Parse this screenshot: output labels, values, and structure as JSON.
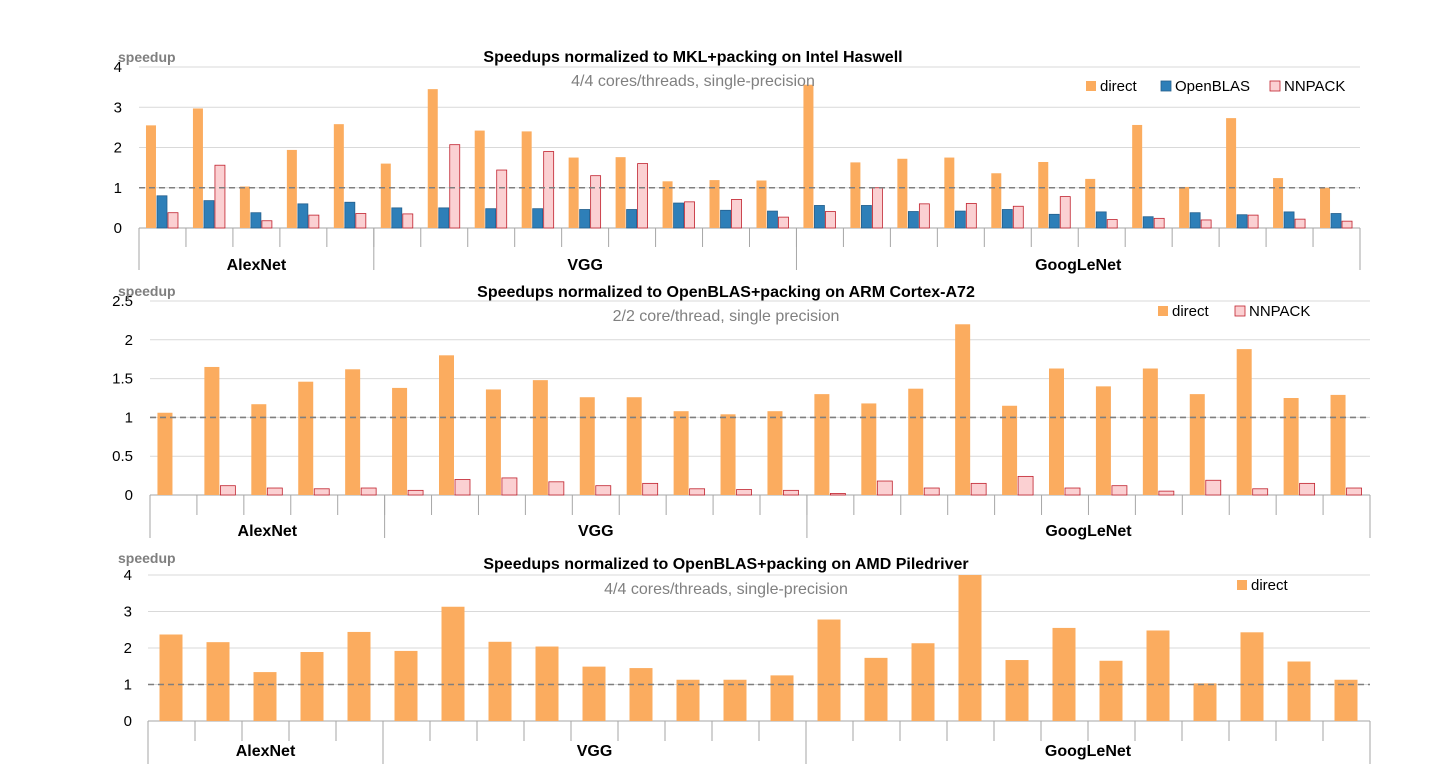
{
  "colors": {
    "direct": "#fbac5f",
    "direct_stroke": "#f79646",
    "openblas": "#2e7fb8",
    "openblas_stroke": "#245f8c",
    "nnpack": "#fbd0d2",
    "nnpack_stroke": "#c0212d",
    "grid": "#d9d9d9",
    "axis": "#a6a6a6",
    "reference_line": "#7f7f7f"
  },
  "chart_data": [
    {
      "type": "bar",
      "title": "Speedups normalized to MKL+packing on Intel Haswell",
      "subtitle": "4/4 cores/threads, single-precision",
      "ylabel": "speedup",
      "ylim": [
        0,
        4
      ],
      "yticks": [
        "0",
        "1",
        "2",
        "3",
        "4"
      ],
      "reference_line": 1,
      "grid": true,
      "legend_position": "top-right",
      "groups": [
        {
          "label": "AlexNet",
          "count": 5
        },
        {
          "label": "VGG",
          "count": 9
        },
        {
          "label": "GoogLeNet",
          "count": 12
        }
      ],
      "series": [
        {
          "name": "direct",
          "color_key": "direct",
          "values": [
            2.55,
            2.97,
            1.03,
            1.94,
            2.58,
            1.6,
            3.45,
            2.42,
            2.4,
            1.75,
            1.76,
            1.16,
            1.19,
            1.18,
            3.56,
            1.63,
            1.72,
            1.75,
            1.36,
            1.64,
            1.22,
            2.56,
            1.02,
            2.73,
            1.24,
            1.0
          ]
        },
        {
          "name": "OpenBLAS",
          "color_key": "openblas",
          "values": [
            0.8,
            0.68,
            0.38,
            0.6,
            0.64,
            0.5,
            0.5,
            0.48,
            0.48,
            0.46,
            0.46,
            0.62,
            0.44,
            0.42,
            0.56,
            0.56,
            0.41,
            0.42,
            0.46,
            0.34,
            0.4,
            0.28,
            0.38,
            0.33,
            0.4,
            0.36
          ]
        },
        {
          "name": "NNPACK",
          "color_key": "nnpack",
          "values": [
            0.38,
            1.56,
            0.18,
            0.32,
            0.36,
            0.35,
            2.07,
            1.44,
            1.9,
            1.3,
            1.6,
            0.65,
            0.71,
            0.27,
            0.41,
            1.0,
            0.6,
            0.61,
            0.54,
            0.78,
            0.21,
            0.24,
            0.2,
            0.32,
            0.22,
            0.17
          ]
        }
      ]
    },
    {
      "type": "bar",
      "title": "Speedups normalized to OpenBLAS+packing on ARM Cortex-A72",
      "subtitle": "2/2 core/thread,  single precision",
      "ylabel": "speedup",
      "ylim": [
        0,
        2.5
      ],
      "yticks": [
        "0",
        "0.5",
        "1",
        "1.5",
        "2",
        "2.5"
      ],
      "reference_line": 1,
      "grid": true,
      "legend_position": "top-right",
      "groups": [
        {
          "label": "AlexNet",
          "count": 5
        },
        {
          "label": "VGG",
          "count": 9
        },
        {
          "label": "GoogLeNet",
          "count": 12
        }
      ],
      "series": [
        {
          "name": "direct",
          "color_key": "direct",
          "values": [
            1.06,
            1.65,
            1.17,
            1.46,
            1.62,
            1.38,
            1.8,
            1.36,
            1.48,
            1.26,
            1.26,
            1.08,
            1.04,
            1.08,
            1.3,
            1.18,
            1.37,
            2.2,
            1.15,
            1.63,
            1.4,
            1.63,
            1.3,
            1.88,
            1.25,
            1.29
          ]
        },
        {
          "name": "NNPACK",
          "color_key": "nnpack",
          "values": [
            0.0,
            0.12,
            0.09,
            0.08,
            0.09,
            0.06,
            0.2,
            0.22,
            0.17,
            0.12,
            0.15,
            0.08,
            0.07,
            0.06,
            0.02,
            0.18,
            0.09,
            0.15,
            0.24,
            0.09,
            0.12,
            0.05,
            0.19,
            0.08,
            0.15,
            0.09
          ]
        }
      ]
    },
    {
      "type": "bar",
      "title": "Speedups normalized to OpenBLAS+packing on AMD Piledriver",
      "subtitle": "4/4 cores/threads, single-precision",
      "ylabel": "speedup",
      "ylim": [
        0,
        4
      ],
      "yticks": [
        "0",
        "1",
        "2",
        "3",
        "4"
      ],
      "reference_line": 1,
      "grid": true,
      "legend_position": "top-right",
      "groups": [
        {
          "label": "AlexNet",
          "count": 5
        },
        {
          "label": "VGG",
          "count": 9
        },
        {
          "label": "GoogLeNet",
          "count": 12
        }
      ],
      "series": [
        {
          "name": "direct",
          "color_key": "direct",
          "values": [
            2.37,
            2.16,
            1.34,
            1.89,
            2.44,
            1.92,
            3.13,
            2.17,
            2.04,
            1.49,
            1.45,
            1.13,
            1.13,
            1.25,
            2.78,
            1.73,
            2.13,
            4.0,
            1.67,
            2.55,
            1.65,
            2.48,
            1.03,
            2.43,
            1.63,
            1.13
          ]
        }
      ]
    }
  ]
}
